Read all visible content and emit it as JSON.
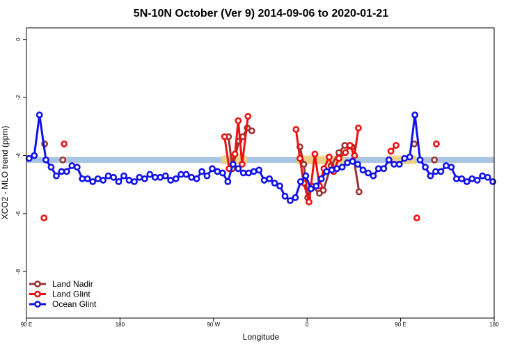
{
  "chart_data": {
    "type": "line",
    "title": "5N-10N October (Ver 9)   2014-09-06 to 2020-01-21",
    "xlabel": "Longitude",
    "ylabel": "XCO2 - MLO trend (ppm)",
    "xlim": [
      0,
      360
    ],
    "ylim": [
      -9.6,
      0.4
    ],
    "x_ticks": [
      {
        "value": 0,
        "label": "90 E"
      },
      {
        "value": 72,
        "label": "180"
      },
      {
        "value": 144,
        "label": "90 W"
      },
      {
        "value": 216,
        "label": "0"
      },
      {
        "value": 288,
        "label": "90 E"
      },
      {
        "value": 360,
        "label": "180"
      }
    ],
    "y_ticks": [
      {
        "value": 0,
        "label": "0"
      },
      {
        "value": -2,
        "label": "-2"
      },
      {
        "value": -4,
        "label": "-4"
      },
      {
        "value": -6,
        "label": "-6"
      },
      {
        "value": -8,
        "label": "-8"
      }
    ],
    "reference_band": {
      "y_min": -4.25,
      "y_max": -4.05,
      "color": "#a9c4e0"
    },
    "highlight_band": {
      "color": "#f5d27a",
      "segments": [
        [
          150,
          170
        ],
        [
          208,
          245
        ],
        [
          277,
          300
        ]
      ],
      "y_min": -4.3,
      "y_max": -4.0
    },
    "legend": {
      "position": "bottom-left"
    },
    "series": [
      {
        "name": "Land Nadir",
        "color": "#993333",
        "segments": [
          [
            [
              14,
              -3.6
            ]
          ],
          [
            [
              28,
              -4.15
            ]
          ],
          [
            [
              155.5,
              -3.35
            ],
            [
              158.5,
              -4.45
            ],
            [
              163.5,
              -3.5
            ],
            [
              166.5,
              -3.35
            ],
            [
              170,
              -3.05
            ],
            [
              173.5,
              -3.15
            ]
          ],
          [
            [
              210.5,
              -3.7
            ],
            [
              213.5,
              -4.3
            ],
            [
              216.5,
              -5.45
            ],
            [
              219.5,
              -5.05
            ],
            [
              225.5,
              -5.3
            ],
            [
              228.5,
              -5.2
            ],
            [
              234.5,
              -4.35
            ],
            [
              240.5,
              -3.9
            ],
            [
              245,
              -3.65
            ],
            [
              250.5,
              -3.7
            ],
            [
              256,
              -5.25
            ]
          ],
          [
            [
              298.5,
              -3.6
            ]
          ],
          [
            [
              314,
              -4.15
            ]
          ]
        ]
      },
      {
        "name": "Land Glint",
        "color": "#ee1111",
        "segments": [
          [
            [
              13.5,
              -6.15
            ]
          ],
          [
            [
              29,
              -3.6
            ]
          ],
          [
            [
              152.5,
              -3.35
            ],
            [
              156,
              -4.45
            ],
            [
              160.5,
              -3.95
            ],
            [
              163,
              -2.8
            ],
            [
              166,
              -4.3
            ],
            [
              170.5,
              -2.65
            ]
          ],
          [
            [
              207.5,
              -3.1
            ],
            [
              210.5,
              -4.1
            ],
            [
              213.5,
              -4.95
            ],
            [
              217.5,
              -5.6
            ],
            [
              222,
              -3.95
            ],
            [
              225.5,
              -5.05
            ],
            [
              229,
              -4.45
            ],
            [
              233,
              -4.05
            ],
            [
              236.5,
              -4.55
            ],
            [
              240.5,
              -4.1
            ],
            [
              245.5,
              -3.9
            ],
            [
              249,
              -3.65
            ],
            [
              252.5,
              -4.0
            ],
            [
              255.5,
              -3.05
            ]
          ],
          [
            [
              280.5,
              -3.85
            ],
            [
              284.5,
              -3.65
            ]
          ],
          [
            [
              300.5,
              -6.15
            ]
          ],
          [
            [
              315.5,
              -3.6
            ]
          ]
        ]
      },
      {
        "name": "Ocean Glint",
        "color": "#1111ee",
        "segments": [
          [
            [
              2,
              -4.1
            ],
            [
              6,
              -4.0
            ],
            [
              10,
              -2.6
            ],
            [
              15,
              -4.15
            ],
            [
              19,
              -4.4
            ],
            [
              23,
              -4.7
            ],
            [
              27,
              -4.55
            ],
            [
              31,
              -4.55
            ],
            [
              35,
              -4.35
            ],
            [
              39,
              -4.4
            ],
            [
              43,
              -4.8
            ],
            [
              47,
              -4.8
            ],
            [
              51,
              -4.9
            ],
            [
              55,
              -4.8
            ],
            [
              59,
              -4.85
            ],
            [
              63,
              -4.7
            ],
            [
              67,
              -4.75
            ],
            [
              71,
              -4.9
            ],
            [
              75,
              -4.7
            ],
            [
              79,
              -4.85
            ],
            [
              83,
              -4.9
            ],
            [
              87,
              -4.75
            ],
            [
              91,
              -4.8
            ],
            [
              95,
              -4.65
            ],
            [
              99,
              -4.75
            ],
            [
              103,
              -4.75
            ],
            [
              107,
              -4.7
            ],
            [
              111,
              -4.85
            ],
            [
              115,
              -4.8
            ],
            [
              119,
              -4.65
            ],
            [
              123,
              -4.65
            ],
            [
              127,
              -4.75
            ],
            [
              131,
              -4.8
            ],
            [
              135,
              -4.55
            ],
            [
              139,
              -4.7
            ],
            [
              143,
              -4.45
            ],
            [
              147,
              -4.55
            ],
            [
              151,
              -4.6
            ],
            [
              155,
              -4.9
            ],
            [
              159,
              -4.3
            ],
            [
              163,
              -4.45
            ],
            [
              167,
              -4.6
            ],
            [
              171,
              -4.6
            ],
            [
              175,
              -4.55
            ],
            [
              179,
              -4.5
            ],
            [
              183,
              -4.85
            ],
            [
              187,
              -4.8
            ],
            [
              191,
              -4.95
            ],
            [
              195,
              -5.05
            ],
            [
              199,
              -5.4
            ],
            [
              203,
              -5.55
            ],
            [
              207,
              -5.45
            ],
            [
              211,
              -4.9
            ],
            [
              215,
              -4.7
            ],
            [
              219,
              -5.15
            ],
            [
              223,
              -5.05
            ],
            [
              227,
              -4.8
            ],
            [
              231,
              -4.55
            ],
            [
              235,
              -4.5
            ],
            [
              239,
              -4.45
            ],
            [
              243,
              -4.4
            ],
            [
              247,
              -4.25
            ],
            [
              251,
              -4.2
            ],
            [
              255,
              -4.3
            ],
            [
              259,
              -4.5
            ],
            [
              263,
              -4.6
            ],
            [
              267,
              -4.7
            ],
            [
              271,
              -4.45
            ],
            [
              275,
              -4.45
            ],
            [
              279,
              -4.15
            ],
            [
              283,
              -4.3
            ],
            [
              287,
              -4.3
            ],
            [
              291,
              -4.1
            ],
            [
              295,
              -4.05
            ],
            [
              299,
              -2.6
            ],
            [
              303,
              -4.15
            ],
            [
              307,
              -4.4
            ],
            [
              311,
              -4.7
            ],
            [
              315,
              -4.55
            ],
            [
              319,
              -4.55
            ],
            [
              323,
              -4.35
            ],
            [
              327,
              -4.4
            ],
            [
              331,
              -4.8
            ],
            [
              335,
              -4.8
            ],
            [
              339,
              -4.9
            ],
            [
              343,
              -4.8
            ],
            [
              347,
              -4.85
            ],
            [
              351,
              -4.7
            ],
            [
              355,
              -4.75
            ],
            [
              359,
              -4.9
            ]
          ]
        ]
      }
    ]
  }
}
